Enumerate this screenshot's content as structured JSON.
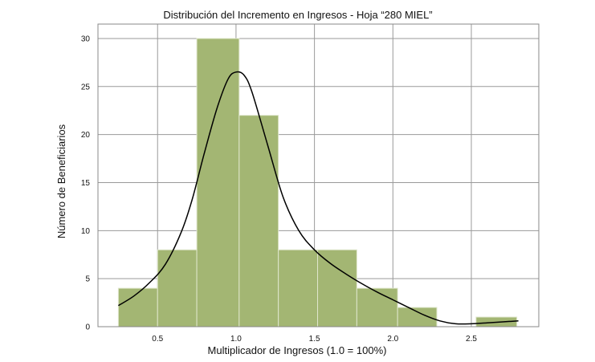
{
  "chart_data": {
    "type": "bar",
    "title": "Distribución del Incremento en Ingresos - Hoja “280 MIEL”",
    "xlabel": "Multiplicador de Ingresos (1.0 = 100%)",
    "ylabel": "Número de Beneficiarios",
    "xlim": [
      0.12,
      2.93
    ],
    "ylim": [
      0,
      31.5
    ],
    "xticks": [
      "0.5",
      "1.0",
      "1.5",
      "2.0",
      "2.5"
    ],
    "xtick_values": [
      0.5,
      1.0,
      1.5,
      2.0,
      2.5
    ],
    "yticks": [
      "0",
      "5",
      "10",
      "15",
      "20",
      "25",
      "30"
    ],
    "ytick_values": [
      0,
      5,
      10,
      15,
      20,
      25,
      30
    ],
    "grid": true,
    "bins": [
      {
        "x0": 0.25,
        "x1": 0.5,
        "count": 4
      },
      {
        "x0": 0.5,
        "x1": 0.75,
        "count": 8
      },
      {
        "x0": 0.75,
        "x1": 1.02,
        "count": 30
      },
      {
        "x0": 1.02,
        "x1": 1.27,
        "count": 22
      },
      {
        "x0": 1.27,
        "x1": 1.52,
        "count": 8
      },
      {
        "x0": 1.52,
        "x1": 1.77,
        "count": 8
      },
      {
        "x0": 1.77,
        "x1": 2.03,
        "count": 4
      },
      {
        "x0": 2.03,
        "x1": 2.28,
        "count": 2
      },
      {
        "x0": 2.28,
        "x1": 2.53,
        "count": 0
      },
      {
        "x0": 2.53,
        "x1": 2.79,
        "count": 1
      }
    ],
    "kde": {
      "x": [
        0.25,
        0.35,
        0.45,
        0.55,
        0.65,
        0.72,
        0.8,
        0.88,
        0.95,
        1.0,
        1.05,
        1.1,
        1.2,
        1.3,
        1.4,
        1.5,
        1.6,
        1.7,
        1.8,
        1.9,
        2.0,
        2.1,
        2.2,
        2.3,
        2.4,
        2.5,
        2.6,
        2.7,
        2.8
      ],
      "y": [
        2.2,
        3.2,
        4.6,
        6.5,
        9.8,
        13.2,
        18.2,
        22.8,
        25.8,
        26.5,
        26.2,
        24.5,
        19.0,
        13.5,
        10.0,
        8.0,
        6.6,
        5.5,
        4.5,
        3.6,
        2.8,
        2.0,
        1.2,
        0.6,
        0.3,
        0.3,
        0.4,
        0.5,
        0.6
      ]
    },
    "bar_color": "#a3b673",
    "bar_edge_color": "#dfe6cc",
    "kde_color": "#000000"
  }
}
